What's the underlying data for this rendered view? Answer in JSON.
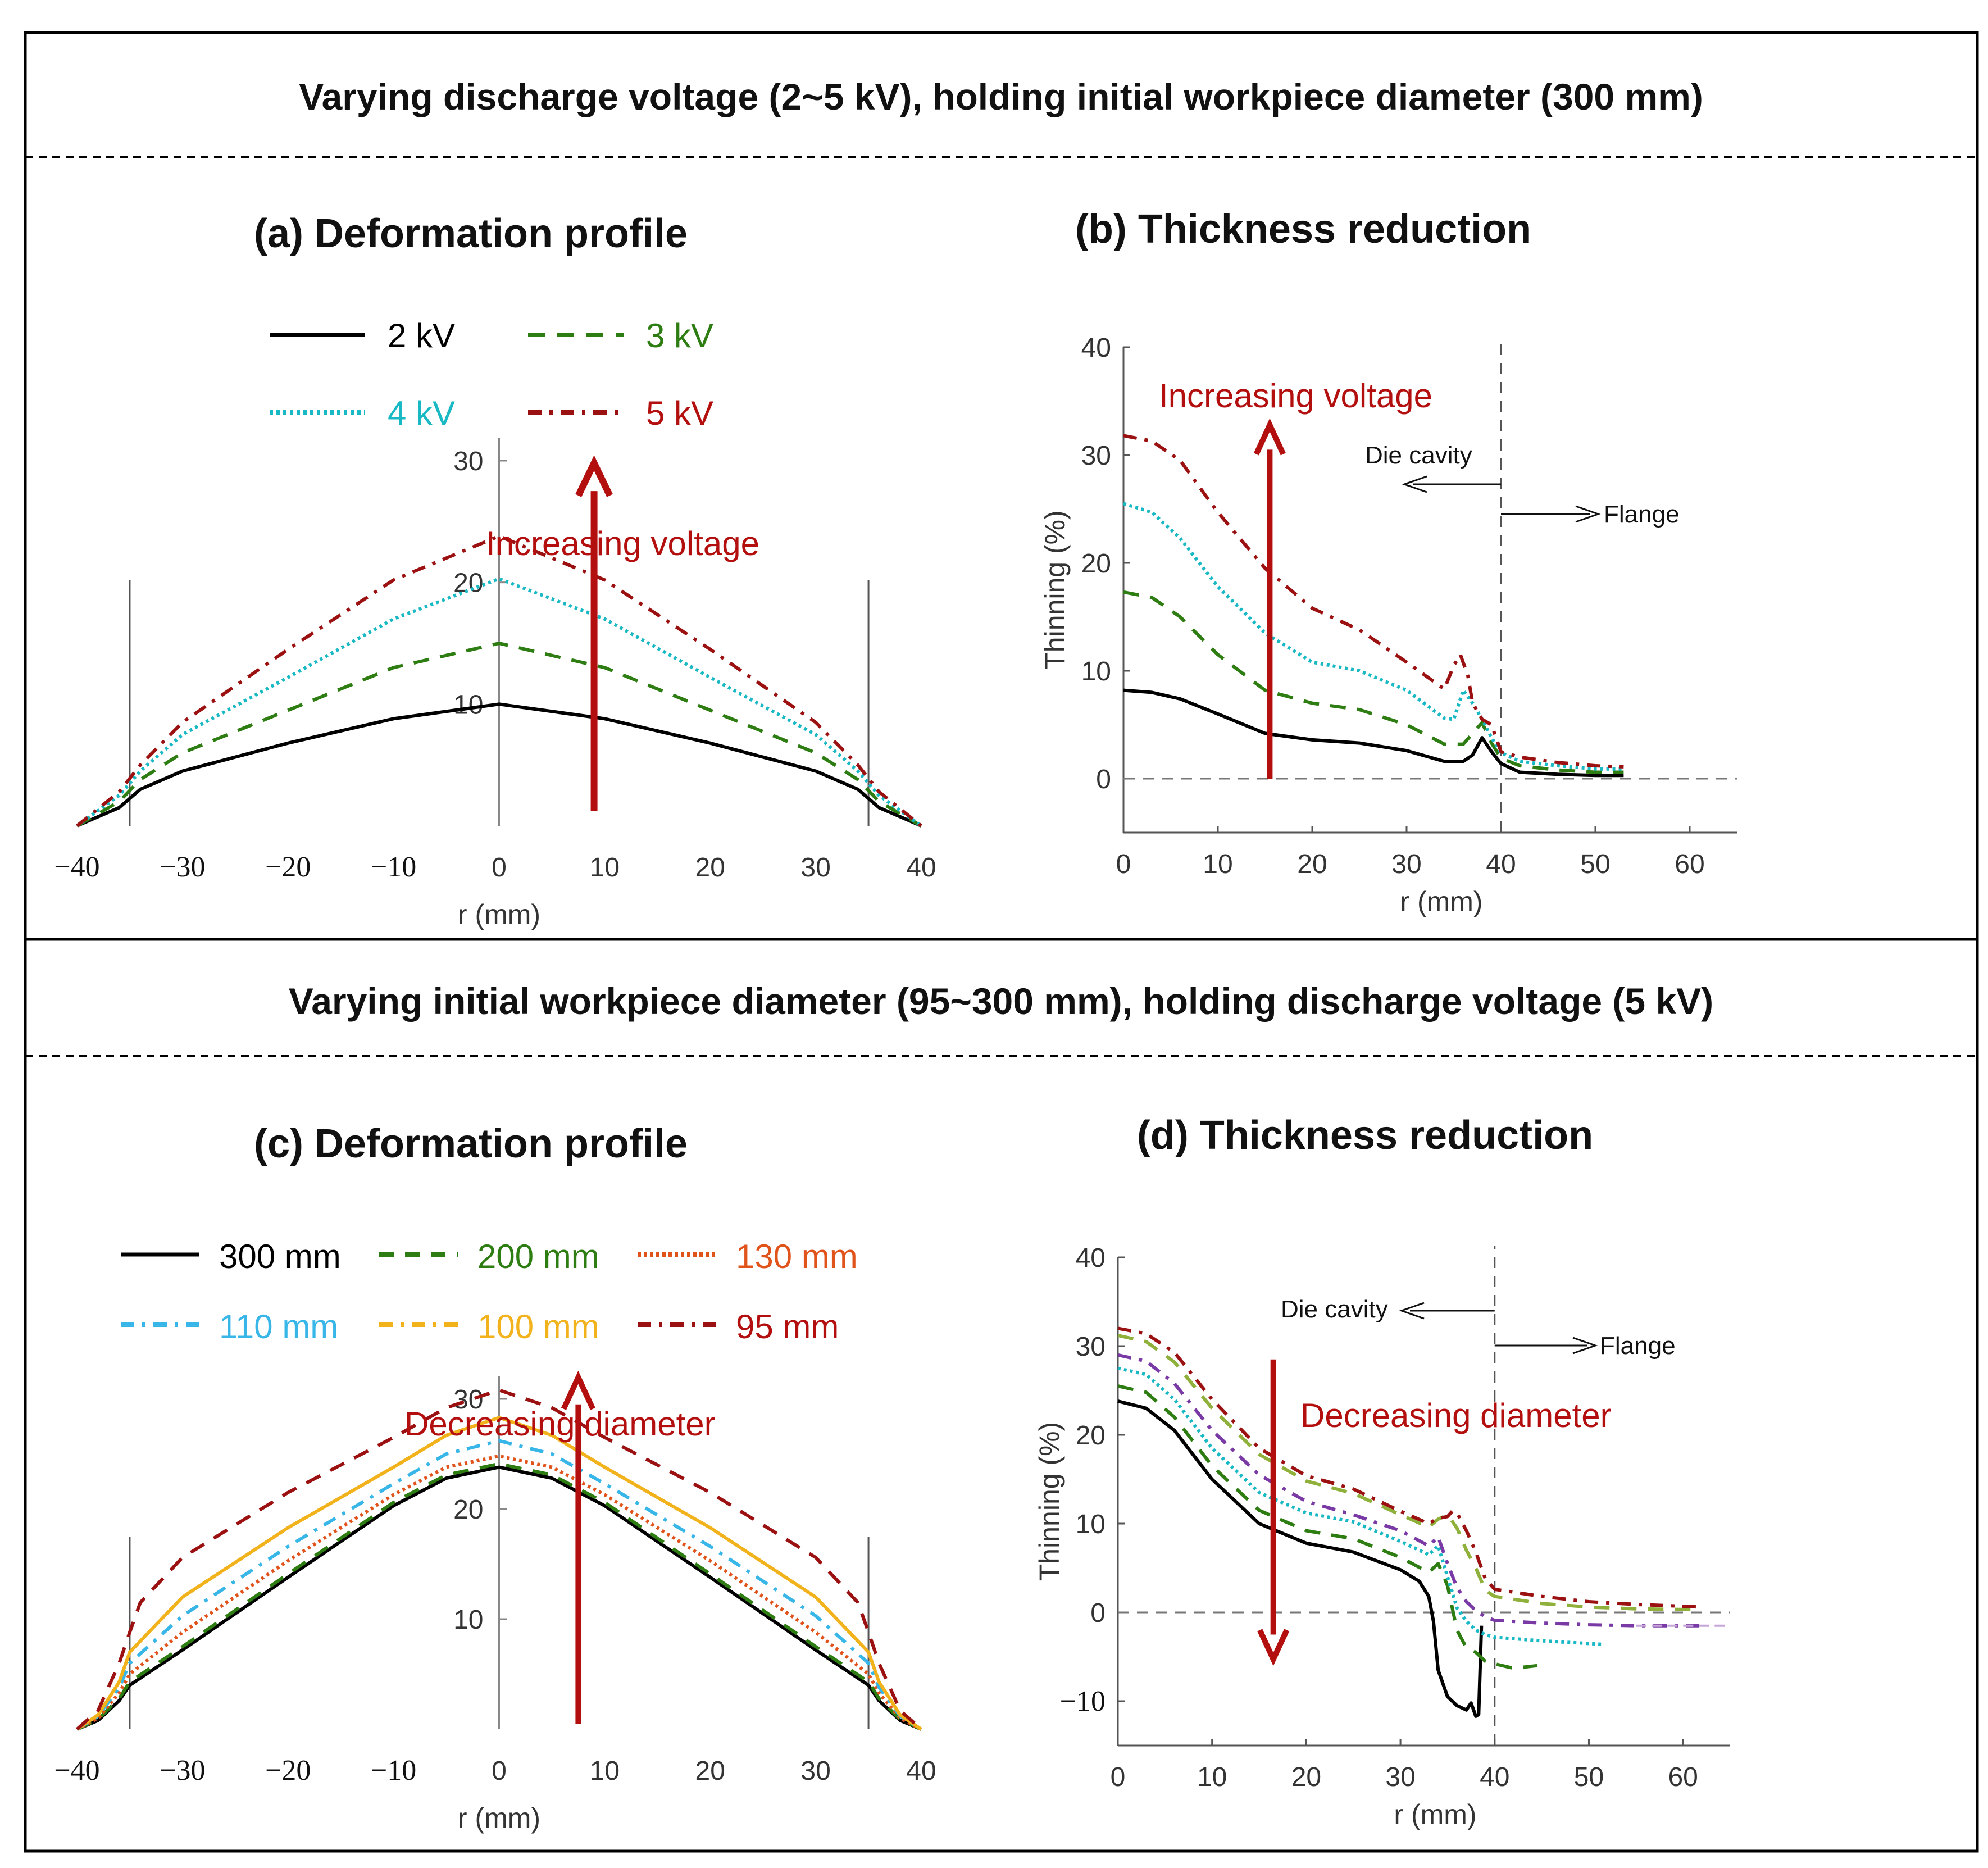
{
  "figure": {
    "banner_top": "Varying discharge voltage (2~5 kV), holding initial workpiece diameter (300 mm)",
    "banner_bottom": "Varying initial workpiece diameter (95~300 mm), holding discharge voltage (5 kV)"
  },
  "colors": {
    "black": "#000000",
    "green": "#2e7d12",
    "cyan": "#18b8c4",
    "darkred": "#9b1111",
    "red_arrow": "#b30f0f",
    "orange_red": "#e0531b",
    "sky": "#38b6e8",
    "gold": "#f2b21b",
    "purple": "#7a3aa5",
    "olive": "#8fb03a",
    "pink_dash": "#c6a7d8"
  },
  "chart_data": [
    {
      "id": "a",
      "type": "line",
      "title": "(a) Deformation profile",
      "xlabel": "r (mm)",
      "ylabel": "",
      "xlim": [
        -40,
        40
      ],
      "ylim": [
        0,
        30
      ],
      "xticks": [
        "−40",
        "−30",
        "−20",
        "−10",
        "0",
        "10",
        "20",
        "30",
        "40"
      ],
      "yticks": [
        "10",
        "20",
        "30"
      ],
      "annotation": "Increasing voltage",
      "series": [
        {
          "name": "2 kV",
          "style": "solid",
          "color": "#000000",
          "x": [
            -40,
            -36,
            -34,
            -30,
            -20,
            -10,
            0,
            10,
            20,
            30,
            34,
            36,
            40
          ],
          "y": [
            0,
            1.5,
            3.0,
            4.5,
            6.8,
            8.8,
            10.0,
            8.8,
            6.8,
            4.5,
            3.0,
            1.5,
            0
          ]
        },
        {
          "name": "3 kV",
          "style": "dashed",
          "color": "#2e7d12",
          "x": [
            -40,
            -36,
            -34,
            -30,
            -20,
            -10,
            0,
            10,
            20,
            30,
            34,
            36,
            40
          ],
          "y": [
            0,
            2.0,
            3.8,
            6.0,
            9.5,
            13.0,
            15.0,
            13.0,
            9.5,
            6.0,
            3.8,
            2.0,
            0
          ]
        },
        {
          "name": "4 kV",
          "style": "dotted",
          "color": "#18b8c4",
          "x": [
            -40,
            -36,
            -34,
            -30,
            -20,
            -10,
            0,
            10,
            20,
            30,
            34,
            36,
            40
          ],
          "y": [
            0,
            2.5,
            4.5,
            7.5,
            12.2,
            17.0,
            20.3,
            17.0,
            12.2,
            7.5,
            4.5,
            2.5,
            0
          ]
        },
        {
          "name": "5 kV",
          "style": "dashdot",
          "color": "#9b1111",
          "x": [
            -40,
            -36,
            -34,
            -30,
            -20,
            -10,
            0,
            10,
            20,
            30,
            34,
            36,
            40
          ],
          "y": [
            0,
            2.8,
            5.0,
            8.5,
            14.5,
            20.2,
            23.8,
            20.2,
            14.5,
            8.5,
            5.0,
            2.8,
            0
          ]
        }
      ]
    },
    {
      "id": "b",
      "type": "line",
      "title": "(b) Thickness reduction",
      "xlabel": "r (mm)",
      "ylabel": "Thinning (%)",
      "xlim": [
        0,
        65
      ],
      "ylim": [
        -5,
        40
      ],
      "xticks": [
        "0",
        "10",
        "20",
        "30",
        "40",
        "50",
        "60"
      ],
      "yticks": [
        "0",
        "10",
        "20",
        "30",
        "40"
      ],
      "annotation": "Increasing voltage",
      "die_label": "Die cavity",
      "flange_label": "Flange",
      "series": [
        {
          "name": "2 kV",
          "style": "solid",
          "color": "#000000",
          "x": [
            0,
            3,
            6,
            10,
            15,
            20,
            25,
            30,
            34,
            36,
            37,
            38,
            39,
            40,
            42,
            46,
            50,
            53
          ],
          "y": [
            8.2,
            8.0,
            7.4,
            6.0,
            4.2,
            3.6,
            3.3,
            2.6,
            1.6,
            1.6,
            2.2,
            3.8,
            2.5,
            1.4,
            0.6,
            0.4,
            0.3,
            0.3
          ]
        },
        {
          "name": "3 kV",
          "style": "dashed",
          "color": "#2e7d12",
          "x": [
            0,
            3,
            6,
            10,
            15,
            20,
            25,
            30,
            34,
            36,
            37,
            38,
            39,
            40,
            42,
            46,
            50,
            53
          ],
          "y": [
            17.3,
            16.8,
            15.0,
            11.5,
            8.2,
            7.0,
            6.4,
            5.0,
            3.2,
            3.2,
            4.2,
            5.2,
            3.3,
            1.9,
            1.2,
            0.8,
            0.6,
            0.6
          ]
        },
        {
          "name": "4 kV",
          "style": "dotted",
          "color": "#18b8c4",
          "x": [
            0,
            3,
            6,
            10,
            15,
            20,
            25,
            30,
            34,
            35,
            36,
            37,
            38,
            39,
            40,
            42,
            46,
            50,
            53
          ],
          "y": [
            25.5,
            24.7,
            22.3,
            17.8,
            13.5,
            10.8,
            10.0,
            8.2,
            5.6,
            5.5,
            8.2,
            7.0,
            5.5,
            3.8,
            2.4,
            1.6,
            1.2,
            0.9,
            0.9
          ]
        },
        {
          "name": "5 kV",
          "style": "dashdot",
          "color": "#9b1111",
          "x": [
            0,
            3,
            6,
            10,
            15,
            20,
            25,
            30,
            34,
            35,
            35.7,
            36.5,
            37,
            38,
            39,
            40,
            42,
            46,
            50,
            53
          ],
          "y": [
            31.8,
            31.3,
            29.5,
            24.7,
            19.5,
            15.8,
            13.8,
            10.8,
            8.3,
            10.5,
            11.5,
            9.5,
            7.0,
            5.5,
            5.0,
            2.5,
            2.0,
            1.5,
            1.2,
            1.1
          ]
        }
      ]
    },
    {
      "id": "c",
      "type": "line",
      "title": "(c) Deformation profile",
      "xlabel": "r (mm)",
      "ylabel": "",
      "xlim": [
        -40,
        40
      ],
      "ylim": [
        0,
        30
      ],
      "xticks": [
        "−40",
        "−30",
        "−20",
        "−10",
        "0",
        "10",
        "20",
        "30",
        "40"
      ],
      "yticks": [
        "10",
        "20",
        "30"
      ],
      "annotation": "Decreasing diameter",
      "series": [
        {
          "name": "300 mm",
          "style": "solid",
          "color": "#000000",
          "x": [
            -40,
            -38,
            -36,
            -35,
            -30,
            -20,
            -10,
            -5,
            0,
            5,
            10,
            20,
            30,
            35,
            36,
            38,
            40
          ],
          "y": [
            0,
            0.8,
            2.6,
            4.0,
            7.2,
            13.8,
            20.3,
            22.8,
            23.8,
            22.8,
            20.3,
            13.8,
            7.2,
            4.0,
            2.6,
            0.8,
            0
          ]
        },
        {
          "name": "200 mm",
          "style": "dashed",
          "color": "#2e7d12",
          "x": [
            -40,
            -38,
            -36,
            -35,
            -30,
            -20,
            -10,
            -5,
            0,
            5,
            10,
            20,
            30,
            35,
            36,
            38,
            40
          ],
          "y": [
            0,
            0.9,
            2.8,
            4.3,
            7.5,
            14.1,
            20.6,
            23.1,
            24.1,
            23.1,
            20.6,
            14.1,
            7.5,
            4.3,
            2.8,
            0.9,
            0
          ]
        },
        {
          "name": "130 mm",
          "style": "dotted",
          "color": "#e0531b",
          "x": [
            -40,
            -38,
            -36,
            -35,
            -30,
            -20,
            -10,
            -5,
            0,
            5,
            10,
            20,
            30,
            35,
            36,
            38,
            40
          ],
          "y": [
            0,
            1.0,
            3.3,
            5.0,
            8.8,
            15.3,
            21.3,
            23.8,
            24.8,
            23.8,
            21.3,
            15.3,
            8.8,
            5.0,
            3.3,
            1.0,
            0
          ]
        },
        {
          "name": "110 mm",
          "style": "dashdot",
          "color": "#38b6e8",
          "x": [
            -40,
            -38,
            -36,
            -35,
            -30,
            -20,
            -10,
            -5,
            0,
            5,
            10,
            20,
            30,
            35,
            36,
            38,
            40
          ],
          "y": [
            0,
            1.2,
            3.8,
            6.0,
            10.3,
            16.6,
            22.3,
            25.0,
            26.2,
            25.0,
            22.3,
            16.6,
            10.3,
            6.0,
            3.8,
            1.2,
            0
          ]
        },
        {
          "name": "100 mm",
          "style": "solid",
          "color": "#f2b21b",
          "x": [
            -40,
            -38,
            -36,
            -35,
            -30,
            -20,
            -10,
            -5,
            0,
            5,
            10,
            20,
            30,
            35,
            36,
            38,
            40
          ],
          "y": [
            0,
            1.3,
            4.3,
            7.0,
            12.0,
            18.3,
            23.8,
            26.7,
            28.3,
            26.7,
            23.8,
            18.3,
            12.0,
            7.0,
            4.3,
            1.3,
            0
          ]
        },
        {
          "name": "95 mm",
          "style": "dashed",
          "color": "#9b1111",
          "x": [
            -40,
            -38,
            -36,
            -35,
            -34,
            -30,
            -20,
            -10,
            -5,
            0,
            5,
            10,
            20,
            30,
            34,
            35,
            36,
            38,
            40
          ],
          "y": [
            0,
            1.7,
            6.0,
            8.8,
            11.5,
            15.6,
            21.5,
            26.5,
            29.2,
            30.8,
            29.2,
            26.5,
            21.5,
            15.6,
            11.5,
            8.8,
            6.0,
            1.7,
            0
          ]
        }
      ]
    },
    {
      "id": "d",
      "type": "line",
      "title": "(d) Thickness reduction",
      "xlabel": "r (mm)",
      "ylabel": "Thinning (%)",
      "xlim": [
        0,
        65
      ],
      "ylim": [
        -15,
        40
      ],
      "xticks": [
        "0",
        "10",
        "20",
        "30",
        "40",
        "50",
        "60"
      ],
      "yticks": [
        "−10",
        "0",
        "10",
        "20",
        "30",
        "40"
      ],
      "annotation": "Decreasing diameter",
      "die_label": "Die cavity",
      "flange_label": "Flange",
      "series": [
        {
          "name": "300 mm",
          "style": "solid",
          "color": "#000000",
          "x": [
            0,
            3,
            6,
            10,
            15,
            20,
            25,
            30,
            32,
            33,
            33.5,
            34,
            35,
            36,
            37,
            37.5,
            38,
            38.3,
            38.6
          ],
          "y": [
            23.8,
            23.0,
            20.5,
            15.0,
            10.0,
            7.8,
            6.8,
            4.8,
            3.5,
            1.8,
            -1.0,
            -6.5,
            -9.5,
            -10.5,
            -11.0,
            -10.2,
            -11.7,
            -11.5,
            -1.5
          ]
        },
        {
          "name": "200 mm",
          "style": "dashed",
          "color": "#2e7d12",
          "x": [
            0,
            3,
            6,
            10,
            15,
            20,
            25,
            30,
            33,
            34,
            35,
            36,
            37,
            38,
            39,
            40,
            42,
            44.5
          ],
          "y": [
            25.5,
            24.8,
            22.0,
            16.5,
            11.5,
            9.2,
            8.3,
            6.2,
            4.5,
            5.5,
            3.0,
            -2.0,
            -4.0,
            -4.5,
            -5.5,
            -5.8,
            -6.3,
            -6.0
          ]
        },
        {
          "name": "130 mm",
          "style": "dotted",
          "color": "#18b8c4",
          "x": [
            0,
            3,
            6,
            10,
            15,
            20,
            25,
            30,
            33,
            34,
            35,
            36,
            37,
            38,
            39,
            40,
            45,
            51.5
          ],
          "y": [
            27.5,
            26.8,
            24.0,
            18.5,
            13.5,
            11.2,
            10.2,
            8.0,
            6.5,
            7.5,
            4.0,
            0.5,
            -1.0,
            -2.0,
            -2.5,
            -2.8,
            -3.2,
            -3.6
          ]
        },
        {
          "name": "110 mm",
          "style": "dashdot",
          "color": "#7a3aa5",
          "x": [
            0,
            3,
            6,
            10,
            15,
            20,
            25,
            30,
            33,
            34,
            35,
            36,
            37,
            38,
            39,
            40,
            45,
            50,
            55,
            62
          ],
          "y": [
            29.0,
            28.3,
            25.8,
            20.5,
            15.5,
            12.5,
            11.0,
            9.2,
            7.5,
            8.5,
            5.5,
            2.8,
            1.2,
            0.2,
            -0.5,
            -0.9,
            -1.2,
            -1.4,
            -1.5,
            -1.5
          ]
        },
        {
          "name": "100 mm",
          "style": "dashed",
          "color": "#8fb03a",
          "x": [
            0,
            3,
            6,
            10,
            15,
            20,
            25,
            30,
            33,
            34,
            35,
            36,
            37,
            38,
            39,
            40,
            45,
            50,
            55,
            62
          ],
          "y": [
            31.2,
            30.5,
            28.2,
            23.0,
            17.8,
            14.8,
            13.4,
            11.0,
            9.6,
            10.5,
            11.0,
            9.5,
            7.0,
            5.0,
            2.5,
            1.8,
            1.0,
            0.6,
            0.4,
            0.3
          ]
        },
        {
          "name": "95 mm",
          "style": "dashdot",
          "color": "#9b1111",
          "x": [
            0,
            3,
            6,
            10,
            15,
            20,
            25,
            30,
            33,
            34,
            35,
            35.5,
            36,
            37,
            38,
            39,
            40,
            45,
            50,
            55,
            62
          ],
          "y": [
            32.0,
            31.4,
            29.3,
            24.0,
            18.5,
            15.4,
            13.9,
            11.4,
            10.0,
            10.6,
            10.8,
            11.4,
            11.2,
            9.2,
            6.8,
            3.8,
            2.6,
            1.8,
            1.2,
            0.9,
            0.6
          ]
        }
      ]
    }
  ]
}
